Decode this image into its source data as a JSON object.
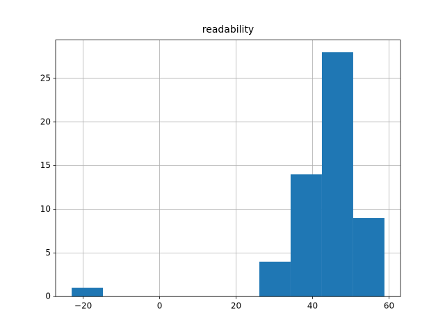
{
  "chart_data": {
    "type": "histogram",
    "title": "readability",
    "bins": [
      -23.0,
      -14.82,
      -6.64,
      1.54,
      9.72,
      17.9,
      26.08,
      34.26,
      42.44,
      50.62,
      58.8
    ],
    "counts": [
      1,
      0,
      0,
      0,
      0,
      0,
      4,
      14,
      28,
      9
    ],
    "color": "#1f77b4",
    "xlim": [
      -27.2,
      63.0
    ],
    "xticks": [
      {
        "value": -20,
        "label": "−20"
      },
      0,
      20,
      40,
      60
    ],
    "ylim": [
      0,
      29.4
    ],
    "yticks": [
      0,
      5,
      10,
      15,
      20,
      25
    ],
    "grid": true
  }
}
